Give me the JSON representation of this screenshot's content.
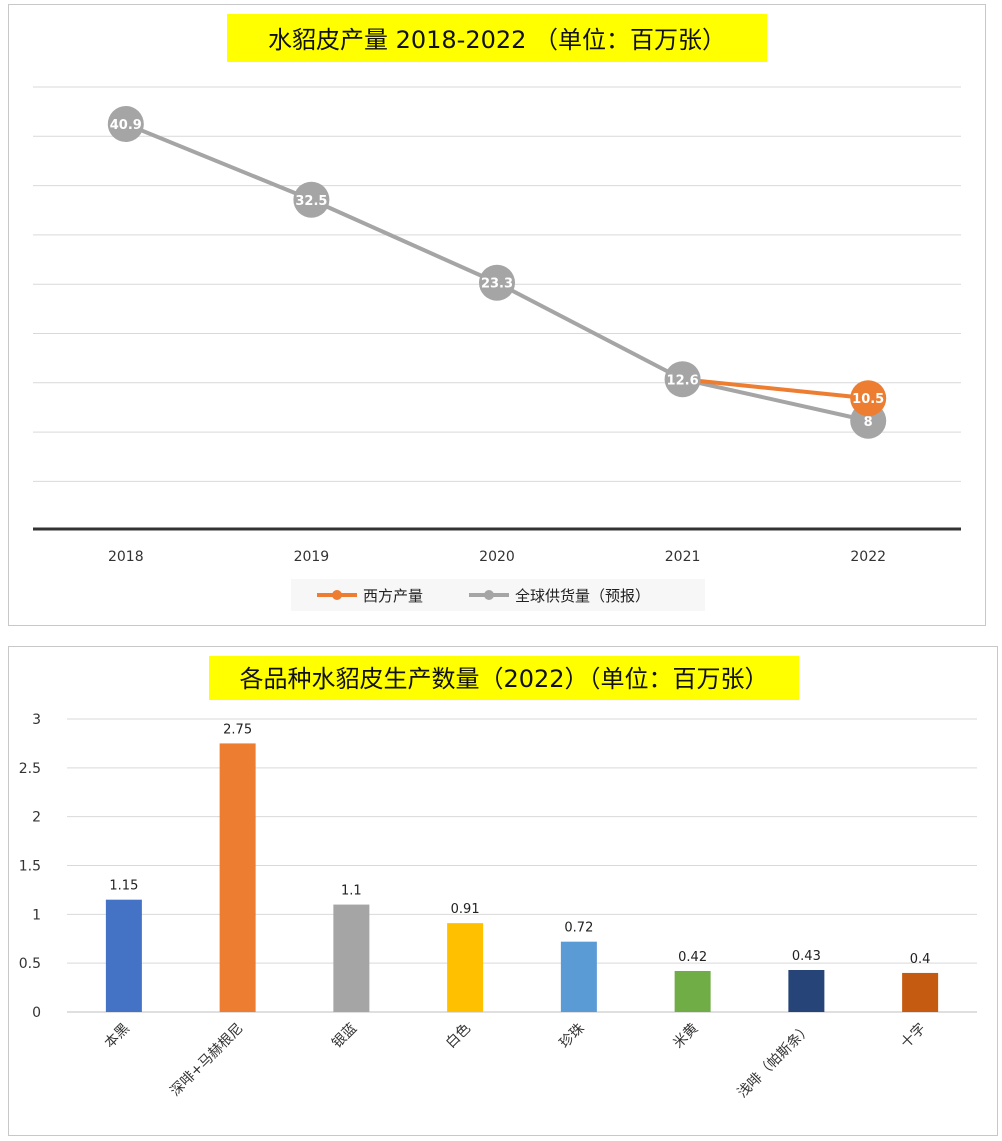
{
  "chart_data": [
    {
      "type": "line",
      "title": "水貂皮产量 2018-2022 （单位：百万张）",
      "categories": [
        "2018",
        "2019",
        "2020",
        "2021",
        "2022"
      ],
      "series": [
        {
          "name": "西方产量",
          "color": "#ED7D31",
          "values": [
            null,
            null,
            null,
            12.6,
            10.5
          ]
        },
        {
          "name": "全球供货量（预报）",
          "color": "#A5A5A5",
          "values": [
            40.9,
            32.5,
            23.3,
            12.6,
            8
          ]
        }
      ],
      "data_labels": [
        "40.9",
        "32.5",
        "23.3",
        "12.6",
        "10.5",
        "8"
      ],
      "ylim": [
        -4,
        45
      ],
      "grid": true,
      "legend_position": "bottom",
      "title_highlight": "#FFFF00"
    },
    {
      "type": "bar",
      "title": "各品种水貂皮生产数量（2022）（单位：百万张）",
      "categories": [
        "本黑",
        "深啡+马赫根尼",
        "银蓝",
        "白色",
        "珍珠",
        "米黄",
        "浅啡（帕斯条）",
        "十字"
      ],
      "values": [
        1.15,
        2.75,
        1.1,
        0.91,
        0.72,
        0.42,
        0.43,
        0.4
      ],
      "value_labels": [
        "1.15",
        "2.75",
        "1.1",
        "0.91",
        "0.72",
        "0.42",
        "0.43",
        "0.4"
      ],
      "colors": [
        "#4472C4",
        "#ED7D31",
        "#A5A5A5",
        "#FFC000",
        "#5B9BD5",
        "#70AD47",
        "#264478",
        "#C55A11"
      ],
      "yticks": [
        "0",
        "0.5",
        "1",
        "1.5",
        "2",
        "2.5",
        "3"
      ],
      "ylim": [
        0,
        3
      ],
      "grid": true,
      "title_highlight": "#FFFF00"
    }
  ]
}
